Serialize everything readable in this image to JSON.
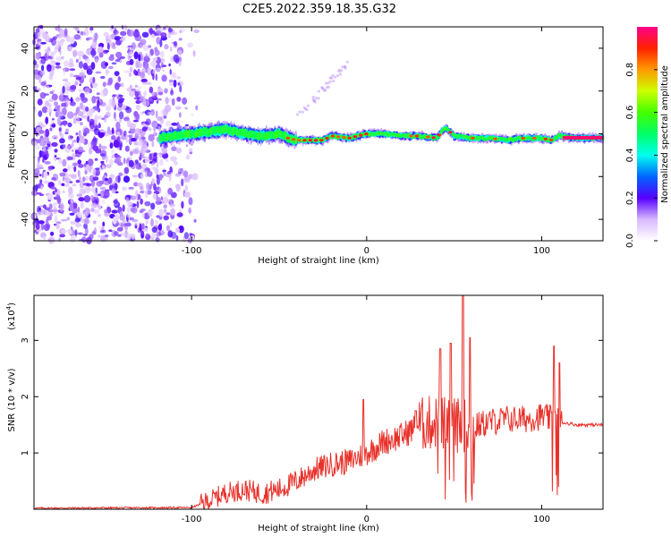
{
  "title": "C2E5.2022.359.18.35.G32",
  "colors": {
    "snr_line": "#e8312a",
    "axis": "#000000"
  },
  "chart_data": [
    {
      "type": "heatmap",
      "xlabel": "Height of straight line (km)",
      "ylabel": "Frequency (Hz)",
      "xlim": [
        -190,
        135
      ],
      "ylim": [
        -50,
        50
      ],
      "x_ticks": [
        {
          "value": -100,
          "label": "-100"
        },
        {
          "value": 0,
          "label": "0"
        },
        {
          "value": 100,
          "label": "100"
        }
      ],
      "y_ticks": [
        {
          "value": -40,
          "label": "-40"
        },
        {
          "value": -20,
          "label": "-20"
        },
        {
          "value": 0,
          "label": "0"
        },
        {
          "value": 20,
          "label": "20"
        },
        {
          "value": 40,
          "label": "40"
        }
      ],
      "colorbar": {
        "label": "Normalized spectral amplitude",
        "range": [
          0,
          1
        ],
        "ticks": [
          {
            "value": 0.0,
            "label": "0.0"
          },
          {
            "value": 0.2,
            "label": "0.2"
          },
          {
            "value": 0.4,
            "label": "0.4"
          },
          {
            "value": 0.6,
            "label": "0.6"
          },
          {
            "value": 0.8,
            "label": "0.8"
          }
        ]
      },
      "noise_region_x": [
        -190,
        -97
      ],
      "ridge": {
        "x": [
          -118,
          -110,
          -100,
          -90,
          -80,
          -70,
          -60,
          -50,
          -45,
          -40,
          -35,
          -30,
          -25,
          -20,
          -10,
          0,
          10,
          20,
          30,
          40,
          45,
          50,
          60,
          70,
          80,
          90,
          100,
          105,
          110,
          120,
          135
        ],
        "frequency_hz": [
          -2,
          -1,
          0,
          1,
          2,
          0,
          -1,
          0,
          -2,
          -3,
          -3,
          -3,
          -3,
          -1,
          -2,
          0,
          0,
          -1,
          -1,
          -2,
          3,
          -1,
          -2,
          -2,
          -3,
          -2,
          -2,
          -3,
          -1,
          -2,
          -2
        ]
      }
    },
    {
      "type": "line",
      "xlabel": "Height of straight line (km)",
      "ylabel": "SNR (10 * v/v)",
      "yscale_label": "(x10",
      "yscale_exp": "4",
      "xlim": [
        -190,
        135
      ],
      "ylim": [
        0,
        3.8
      ],
      "x_ticks": [
        {
          "value": -100,
          "label": "-100"
        },
        {
          "value": 0,
          "label": "0"
        },
        {
          "value": 100,
          "label": "100"
        }
      ],
      "y_ticks": [
        {
          "value": 1,
          "label": "1"
        },
        {
          "value": 2,
          "label": "2"
        },
        {
          "value": 3,
          "label": "3"
        }
      ],
      "series": [
        {
          "baseline_x": [
            -190,
            -100,
            -90,
            -80,
            -70,
            -60,
            -50,
            -40,
            -30,
            -20,
            -10,
            0,
            10,
            20,
            30,
            40,
            50,
            60,
            70,
            80,
            90,
            100,
            110,
            120,
            135
          ],
          "baseline_y": [
            0.02,
            0.03,
            0.15,
            0.3,
            0.35,
            0.28,
            0.35,
            0.5,
            0.7,
            0.8,
            0.85,
            1.0,
            1.2,
            1.3,
            1.5,
            1.55,
            1.5,
            1.45,
            1.55,
            1.6,
            1.6,
            1.65,
            1.55,
            1.5,
            1.5
          ],
          "peaks": [
            {
              "x": -2,
              "y": 1.95
            },
            {
              "x": 28,
              "y": 1.75
            },
            {
              "x": 42,
              "y": 2.85
            },
            {
              "x": 48,
              "y": 2.95
            },
            {
              "x": 55,
              "y": 3.8
            },
            {
              "x": 59,
              "y": 3.05
            },
            {
              "x": 107,
              "y": 2.9
            },
            {
              "x": 110,
              "y": 2.6
            }
          ]
        }
      ]
    }
  ]
}
